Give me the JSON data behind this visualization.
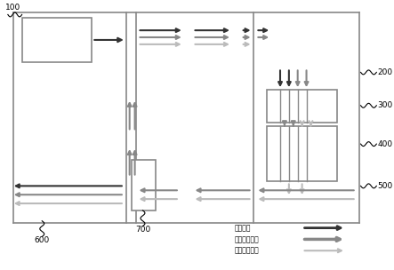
{
  "bg_color": "#ffffff",
  "lc": "#888888",
  "dc": "#333333",
  "mc": "#888888",
  "lac": "#bbbbbb",
  "legend_labels": [
    "污染气体",
    "一级净化气体",
    "多级净化气体"
  ],
  "component_labels": [
    "100",
    "200",
    "300",
    "400",
    "500",
    "600",
    "700"
  ],
  "lf": 6.5
}
